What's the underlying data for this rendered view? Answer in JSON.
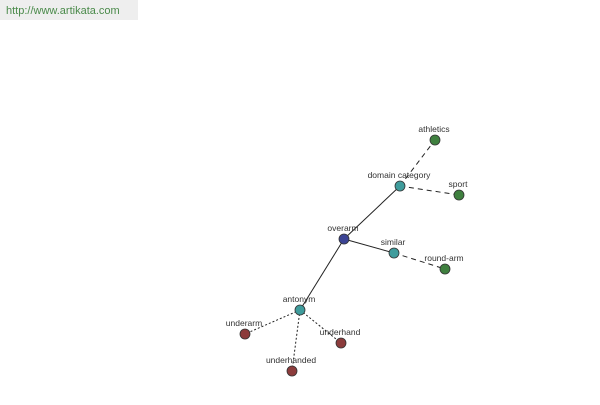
{
  "header": {
    "url": "http://www.artikata.com"
  },
  "nodes": [
    {
      "label": "overarm"
    },
    {
      "label": "domain category"
    },
    {
      "label": "athletics"
    },
    {
      "label": "sport"
    },
    {
      "label": "similar"
    },
    {
      "label": "round-arm"
    },
    {
      "label": "antonym"
    },
    {
      "label": "underarm"
    },
    {
      "label": "underhanded"
    },
    {
      "label": "underhand"
    }
  ]
}
